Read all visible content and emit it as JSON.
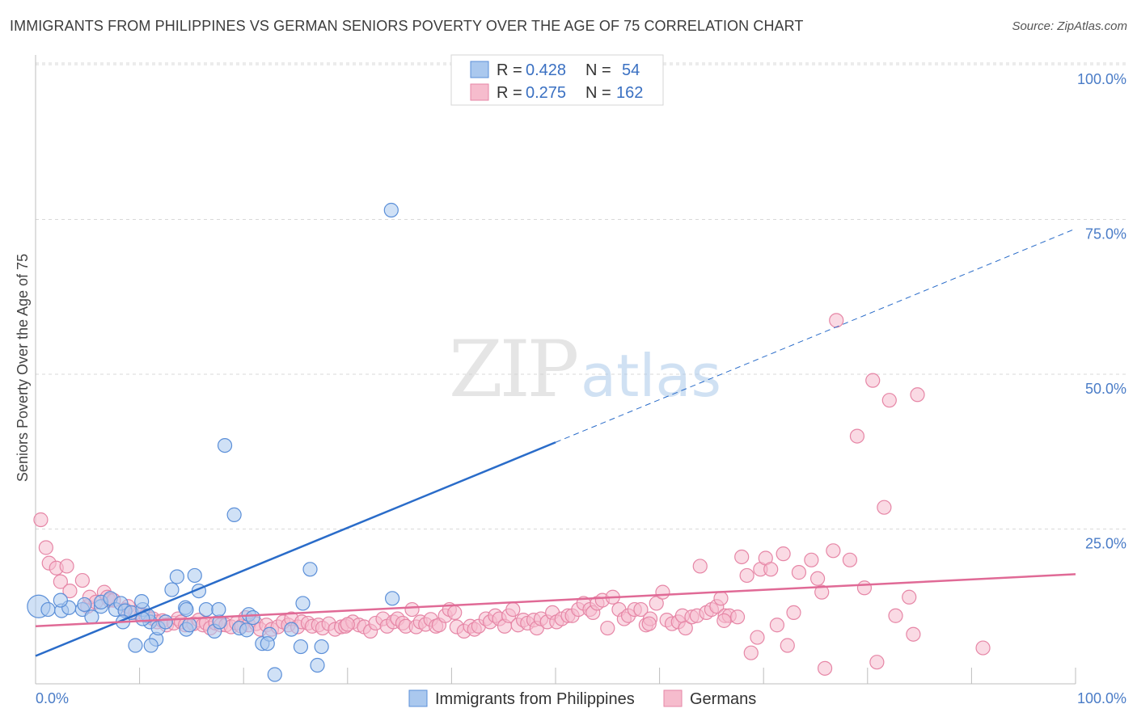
{
  "title": "IMMIGRANTS FROM PHILIPPINES VS GERMAN SENIORS POVERTY OVER THE AGE OF 75 CORRELATION CHART",
  "source": "Source: ZipAtlas.com",
  "watermark": {
    "zip": "ZIP",
    "atlas": "atlas"
  },
  "colors": {
    "blue_fill": "#aac8ee",
    "blue_stroke": "#5b8fd8",
    "blue_line": "#2a6cc9",
    "pink_fill": "#f6bccd",
    "pink_stroke": "#e686a6",
    "pink_line": "#e06a96",
    "tick_text": "#4a7cc7",
    "grid": "#d9d9d9"
  },
  "legend": {
    "rows": [
      {
        "r_label": "R =",
        "r_value": "0.428",
        "n_label": "N =",
        "n_value": "54",
        "series": "blue"
      },
      {
        "r_label": "R =",
        "r_value": "0.275",
        "n_label": "N =",
        "n_value": "162",
        "series": "pink"
      }
    ]
  },
  "chart_data": {
    "type": "scatter",
    "title": "IMMIGRANTS FROM PHILIPPINES VS GERMAN SENIORS POVERTY OVER THE AGE OF 75 CORRELATION CHART",
    "xlabel": "",
    "ylabel": "Seniors Poverty Over the Age of 75",
    "xlim": [
      0,
      100
    ],
    "ylim": [
      0,
      100
    ],
    "x_tick_labels": [
      "0.0%",
      "100.0%"
    ],
    "y_ticks": [
      25,
      50,
      75,
      100
    ],
    "y_tick_labels": [
      "25.0%",
      "50.0%",
      "75.0%",
      "100.0%"
    ],
    "grid": true,
    "legend_position": "top-center",
    "series": [
      {
        "name": "Immigrants from Philippines",
        "color": "blue",
        "trend": {
          "x0": 0,
          "y0": 4.5,
          "x1": 50,
          "y1": 39,
          "dashed_to_x": 100,
          "dashed_to_y": 73.5
        },
        "points": [
          [
            0.3,
            12.5
          ],
          [
            1.2,
            12
          ],
          [
            2.5,
            11.8
          ],
          [
            3.2,
            12.3
          ],
          [
            2.4,
            13.5
          ],
          [
            4.5,
            12
          ],
          [
            4.7,
            12.8
          ],
          [
            5.4,
            10.8
          ],
          [
            6.3,
            12.5
          ],
          [
            6.3,
            13.2
          ],
          [
            7.2,
            13.8
          ],
          [
            7.7,
            12
          ],
          [
            8.2,
            13
          ],
          [
            8.6,
            11.8
          ],
          [
            9.2,
            11.5
          ],
          [
            8.4,
            10
          ],
          [
            10.3,
            12
          ],
          [
            11.0,
            10
          ],
          [
            10.8,
            11
          ],
          [
            11.6,
            7.2
          ],
          [
            11.1,
            6.2
          ],
          [
            9.6,
            6.2
          ],
          [
            10.2,
            13.3
          ],
          [
            10.3,
            10.5
          ],
          [
            11.8,
            9
          ],
          [
            12.5,
            10
          ],
          [
            13.1,
            15.2
          ],
          [
            13.6,
            17.3
          ],
          [
            14.4,
            12.3
          ],
          [
            14.5,
            12
          ],
          [
            14.5,
            8.8
          ],
          [
            15.3,
            17.5
          ],
          [
            16.4,
            12
          ],
          [
            17.2,
            8.5
          ],
          [
            17.7,
            10
          ],
          [
            15.7,
            15
          ],
          [
            18.2,
            38.5
          ],
          [
            17.6,
            12
          ],
          [
            19.1,
            27.3
          ],
          [
            19.6,
            9
          ],
          [
            20.5,
            11.2
          ],
          [
            20.9,
            10.7
          ],
          [
            20.3,
            8.7
          ],
          [
            21.8,
            6.5
          ],
          [
            22.5,
            8
          ],
          [
            22.3,
            6.5
          ],
          [
            23.0,
            1.5
          ],
          [
            24.6,
            8.8
          ],
          [
            25.5,
            6
          ],
          [
            25.7,
            13
          ],
          [
            26.4,
            18.5
          ],
          [
            27.1,
            3
          ],
          [
            27.5,
            6
          ],
          [
            34.2,
            76.5
          ],
          [
            34.3,
            13.8
          ],
          [
            14.8,
            9.5
          ]
        ]
      },
      {
        "name": "Germans",
        "color": "pink",
        "trend": {
          "x0": 0,
          "y0": 9.3,
          "x1": 100,
          "y1": 17.7
        },
        "points": [
          [
            0.5,
            26.5
          ],
          [
            1,
            22
          ],
          [
            1.3,
            19.5
          ],
          [
            2,
            18.7
          ],
          [
            3,
            19
          ],
          [
            2.4,
            16.5
          ],
          [
            3.3,
            15
          ],
          [
            4.5,
            16.7
          ],
          [
            5,
            12.5
          ],
          [
            5.2,
            14
          ],
          [
            5.8,
            13.2
          ],
          [
            6.6,
            14.8
          ],
          [
            6.9,
            14
          ],
          [
            7.1,
            13.5
          ],
          [
            7.5,
            13.5
          ],
          [
            8.6,
            12
          ],
          [
            8.9,
            12.5
          ],
          [
            9.6,
            11.5
          ],
          [
            10.2,
            11.2
          ],
          [
            10.6,
            11
          ],
          [
            11.3,
            10.5
          ],
          [
            11.7,
            10
          ],
          [
            12.2,
            10.2
          ],
          [
            12.6,
            9.5
          ],
          [
            13.3,
            9.8
          ],
          [
            13.7,
            10.5
          ],
          [
            14.0,
            10
          ],
          [
            14.4,
            9.5
          ],
          [
            15.2,
            9.7
          ],
          [
            15.7,
            10.3
          ],
          [
            16.1,
            9.5
          ],
          [
            16.4,
            9.8
          ],
          [
            16.8,
            9
          ],
          [
            17.3,
            9.8
          ],
          [
            17.8,
            9.5
          ],
          [
            18.3,
            9.5
          ],
          [
            18.8,
            9.2
          ],
          [
            19.3,
            9.8
          ],
          [
            19.8,
            9.3
          ],
          [
            20.2,
            10.7
          ],
          [
            20.5,
            9.5
          ],
          [
            21.2,
            9.7
          ],
          [
            21.6,
            8.8
          ],
          [
            22.2,
            9.5
          ],
          [
            22.7,
            8.8
          ],
          [
            23.3,
            9.2
          ],
          [
            23.8,
            10
          ],
          [
            24.3,
            9.5
          ],
          [
            24.6,
            10.5
          ],
          [
            25.2,
            9.2
          ],
          [
            25.6,
            10
          ],
          [
            26.2,
            9.8
          ],
          [
            26.6,
            9.3
          ],
          [
            27.2,
            9.5
          ],
          [
            27.6,
            9
          ],
          [
            28.2,
            9.7
          ],
          [
            28.8,
            8.8
          ],
          [
            29.4,
            9.2
          ],
          [
            29.8,
            9.3
          ],
          [
            30.5,
            10
          ],
          [
            31.1,
            9.5
          ],
          [
            31.6,
            9.2
          ],
          [
            32.2,
            8.5
          ],
          [
            32.7,
            9.8
          ],
          [
            33.4,
            10.5
          ],
          [
            33.8,
            9.3
          ],
          [
            34.4,
            10
          ],
          [
            34.8,
            10.5
          ],
          [
            35.3,
            9.8
          ],
          [
            35.6,
            9.3
          ],
          [
            36.2,
            12
          ],
          [
            36.6,
            9.2
          ],
          [
            37.0,
            10
          ],
          [
            37.5,
            9.6
          ],
          [
            38.0,
            10.4
          ],
          [
            38.5,
            9.3
          ],
          [
            38.8,
            9.5
          ],
          [
            39.4,
            11
          ],
          [
            39.8,
            12
          ],
          [
            40.3,
            11.5
          ],
          [
            40.5,
            9.2
          ],
          [
            41.2,
            8.5
          ],
          [
            41.8,
            9.3
          ],
          [
            42.2,
            8.8
          ],
          [
            42.6,
            9.3
          ],
          [
            43.3,
            10.5
          ],
          [
            43.7,
            10
          ],
          [
            44.2,
            11
          ],
          [
            44.6,
            10.5
          ],
          [
            45.1,
            9.3
          ],
          [
            45.5,
            11
          ],
          [
            45.9,
            12
          ],
          [
            46.4,
            9.5
          ],
          [
            46.9,
            10.3
          ],
          [
            47.3,
            9.8
          ],
          [
            47.9,
            10.3
          ],
          [
            48.2,
            9
          ],
          [
            48.6,
            10.5
          ],
          [
            49.2,
            10
          ],
          [
            49.7,
            11.5
          ],
          [
            50.1,
            10
          ],
          [
            50.6,
            10.5
          ],
          [
            51.2,
            11
          ],
          [
            51.6,
            11
          ],
          [
            52.2,
            12
          ],
          [
            52.7,
            13
          ],
          [
            53.3,
            12
          ],
          [
            53.6,
            11.5
          ],
          [
            54.0,
            13
          ],
          [
            54.5,
            13.5
          ],
          [
            55.0,
            9
          ],
          [
            55.5,
            14
          ],
          [
            56.1,
            12
          ],
          [
            56.6,
            10.5
          ],
          [
            57.0,
            11
          ],
          [
            57.6,
            12
          ],
          [
            58.2,
            12
          ],
          [
            58.7,
            9.5
          ],
          [
            59.1,
            10.5
          ],
          [
            59.7,
            13
          ],
          [
            60.3,
            14.8
          ],
          [
            60.7,
            10.3
          ],
          [
            61.2,
            9.7
          ],
          [
            61.8,
            10
          ],
          [
            62.2,
            11
          ],
          [
            62.5,
            9
          ],
          [
            63.1,
            10.8
          ],
          [
            63.6,
            11
          ],
          [
            63.9,
            19
          ],
          [
            64.5,
            11.5
          ],
          [
            65.0,
            12
          ],
          [
            65.5,
            12.5
          ],
          [
            65.9,
            13.8
          ],
          [
            66.3,
            11
          ],
          [
            66.7,
            11
          ],
          [
            67.5,
            10.8
          ],
          [
            67.9,
            20.5
          ],
          [
            68.4,
            17.5
          ],
          [
            68.8,
            5
          ],
          [
            69.4,
            7.5
          ],
          [
            69.7,
            18.5
          ],
          [
            70.2,
            20.3
          ],
          [
            70.7,
            18.5
          ],
          [
            71.3,
            9.5
          ],
          [
            71.9,
            21
          ],
          [
            72.3,
            6.2
          ],
          [
            72.9,
            11.5
          ],
          [
            73.4,
            18
          ],
          [
            74.6,
            20
          ],
          [
            75.2,
            17
          ],
          [
            75.6,
            14.8
          ],
          [
            75.9,
            2.5
          ],
          [
            76.7,
            21.5
          ],
          [
            77.0,
            58.7
          ],
          [
            78.3,
            20
          ],
          [
            79.0,
            40
          ],
          [
            79.7,
            15.5
          ],
          [
            80.5,
            49
          ],
          [
            80.9,
            3.5
          ],
          [
            81.6,
            28.5
          ],
          [
            82.1,
            45.8
          ],
          [
            82.7,
            11
          ],
          [
            84.0,
            14
          ],
          [
            84.4,
            8
          ],
          [
            84.8,
            46.7
          ],
          [
            91.1,
            5.8
          ],
          [
            66.2,
            10.2
          ],
          [
            59.0,
            9.7
          ],
          [
            30.0,
            9.6
          ]
        ]
      }
    ]
  },
  "bottom_legend": [
    {
      "label": "Immigrants from Philippines",
      "series": "blue"
    },
    {
      "label": "Germans",
      "series": "pink"
    }
  ]
}
